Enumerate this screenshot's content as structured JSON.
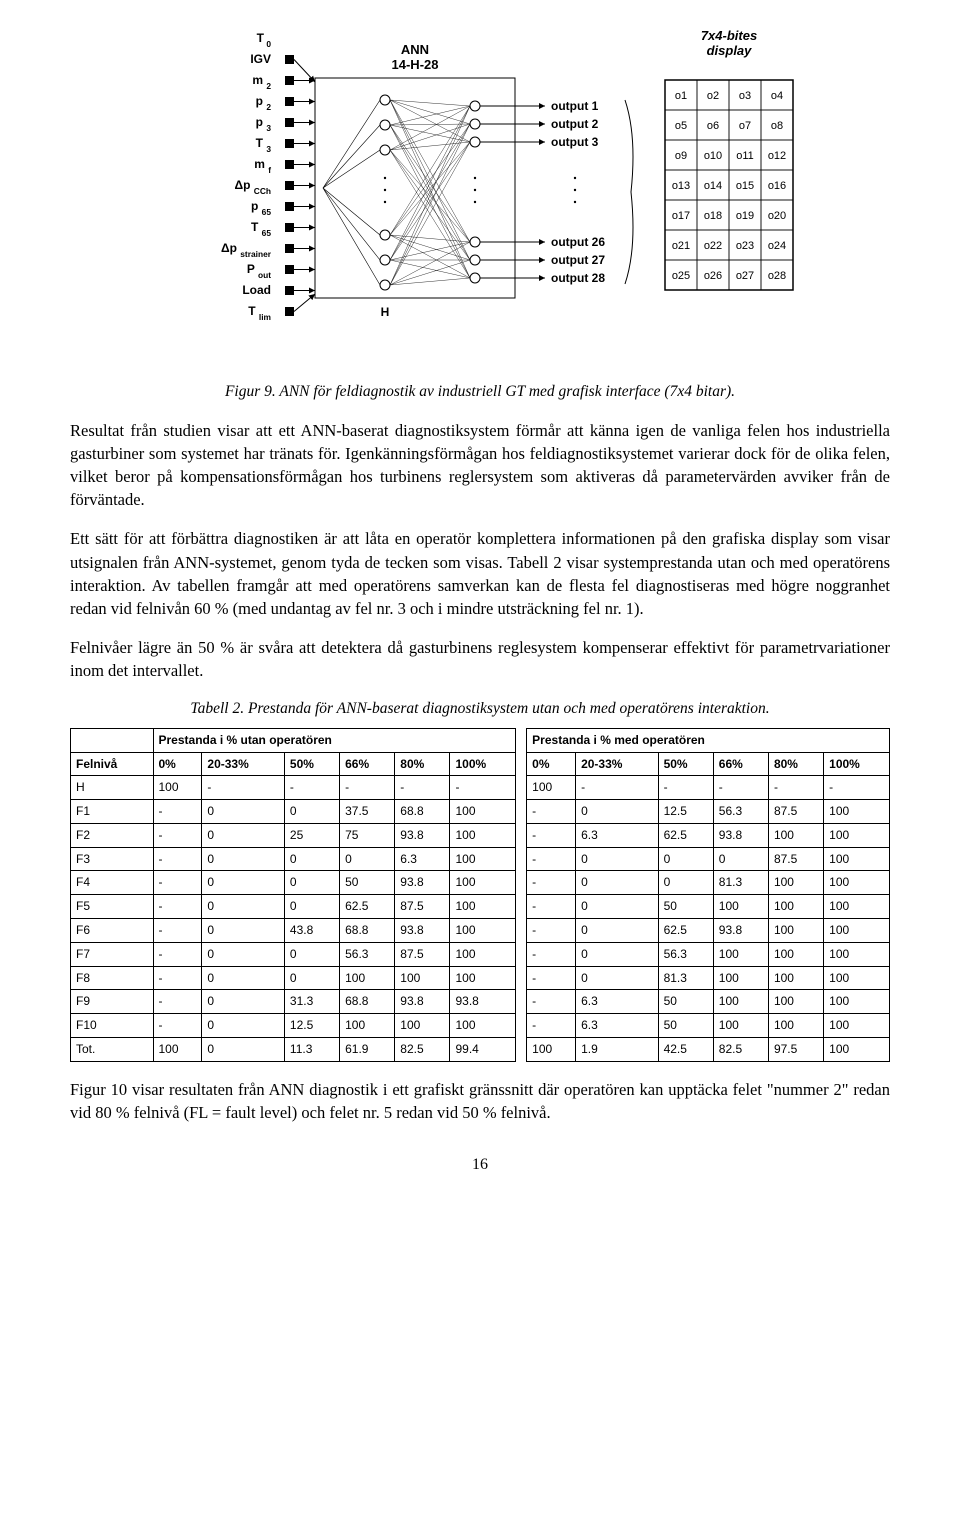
{
  "figure9": {
    "inputs": [
      "T<sub> 0</sub>",
      "IGV",
      "m <sub>2</sub>",
      "p <sub>2</sub>",
      "p <sub>3</sub>",
      "T <sub>3</sub>",
      "m <sub>f</sub>",
      "Δp <sub>CCh</sub>",
      "p <sub>65</sub>",
      "T <sub>65</sub>",
      "Δp <sub>strainer</sub>",
      "P <sub>out</sub>",
      "Load",
      "T <sub>lim</sub>"
    ],
    "ann_title": "ANN\n14-H-28",
    "hidden_label": "H",
    "outputs": [
      "output 1",
      "output 2",
      "output 3",
      "output 26",
      "output 27",
      "output 28"
    ],
    "display_title": "7x4-bites\ndisplay",
    "display_cells": [
      [
        "o1",
        "o2",
        "o3",
        "o4"
      ],
      [
        "o5",
        "o6",
        "o7",
        "o8"
      ],
      [
        "o9",
        "o10",
        "o11",
        "o12"
      ],
      [
        "o13",
        "o14",
        "o15",
        "o16"
      ],
      [
        "o17",
        "o18",
        "o19",
        "o20"
      ],
      [
        "o21",
        "o22",
        "o23",
        "o24"
      ],
      [
        "o25",
        "o26",
        "o27",
        "o28"
      ]
    ],
    "caption": "Figur 9. ANN för feldiagnostik av industriell GT med grafisk interface (7x4 bitar).",
    "style": {
      "font_family": "Tahoma, Verdana, Arial, sans-serif",
      "font_size_label": 12,
      "font_size_header": 13,
      "input_box_fill": "#000000",
      "input_box_size": 9,
      "node_radius": 5,
      "node_fill": "#ffffff",
      "node_stroke": "#000000",
      "line_color": "#000000",
      "display_border": "#000000",
      "display_cell_border": "#000000"
    }
  },
  "paragraphs": {
    "p1": "Resultat från studien visar att ett ANN-baserat diagnostiksystem förmår att känna igen de vanliga felen hos industriella gasturbiner som systemet har tränats för. Igenkänningsförmågan hos feldiagnostiksystemet varierar dock för de olika felen, vilket beror på kompensationsförmågan hos turbinens reglersystem som aktiveras då parametervärden avviker från de förväntade.",
    "p2": "Ett sätt för att förbättra diagnostiken är att låta en operatör komplettera informationen på den grafiska display som visar utsignalen från ANN-systemet, genom tyda de tecken som visas. Tabell 2 visar systemprestanda utan och med operatörens interaktion. Av tabellen framgår att med operatörens samverkan kan de flesta fel diagnostiseras med högre noggranhet redan vid felnivån 60 % (med undantag av fel nr. 3 och i mindre utsträckning fel nr. 1).",
    "p3": "Felnivåer lägre än 50 % är svåra att detektera då gasturbinens reglesystem kompenserar effektivt för parametrvariationer inom det intervallet.",
    "p4": "Figur 10 visar resultaten från ANN diagnostik i ett grafiskt gränssnitt där operatören kan upptäcka felet \"nummer 2\" redan vid 80 % felnivå (FL = fault level) och felet nr. 5 redan vid 50 % felnivå."
  },
  "table2": {
    "caption": "Tabell 2. Prestanda för ANN-baserat diagnostiksystem utan och med operatörens interaktion.",
    "group_left": "Prestanda i % utan operatören",
    "group_right": "Prestanda i % med operatören",
    "row_header": "Felnivå",
    "cols": [
      "0%",
      "20-33%",
      "50%",
      "66%",
      "80%",
      "100%"
    ],
    "rows": [
      {
        "label": "H",
        "l": [
          "100",
          "-",
          "-",
          "-",
          "-",
          "-"
        ],
        "r": [
          "100",
          "-",
          "-",
          "-",
          "-",
          "-"
        ]
      },
      {
        "label": "F1",
        "l": [
          "-",
          "0",
          "0",
          "37.5",
          "68.8",
          "100"
        ],
        "r": [
          "-",
          "0",
          "12.5",
          "56.3",
          "87.5",
          "100"
        ]
      },
      {
        "label": "F2",
        "l": [
          "-",
          "0",
          "25",
          "75",
          "93.8",
          "100"
        ],
        "r": [
          "-",
          "6.3",
          "62.5",
          "93.8",
          "100",
          "100"
        ]
      },
      {
        "label": "F3",
        "l": [
          "-",
          "0",
          "0",
          "0",
          "6.3",
          "100"
        ],
        "r": [
          "-",
          "0",
          "0",
          "0",
          "87.5",
          "100"
        ]
      },
      {
        "label": "F4",
        "l": [
          "-",
          "0",
          "0",
          "50",
          "93.8",
          "100"
        ],
        "r": [
          "-",
          "0",
          "0",
          "81.3",
          "100",
          "100"
        ]
      },
      {
        "label": "F5",
        "l": [
          "-",
          "0",
          "0",
          "62.5",
          "87.5",
          "100"
        ],
        "r": [
          "-",
          "0",
          "50",
          "100",
          "100",
          "100"
        ]
      },
      {
        "label": "F6",
        "l": [
          "-",
          "0",
          "43.8",
          "68.8",
          "93.8",
          "100"
        ],
        "r": [
          "-",
          "0",
          "62.5",
          "93.8",
          "100",
          "100"
        ]
      },
      {
        "label": "F7",
        "l": [
          "-",
          "0",
          "0",
          "56.3",
          "87.5",
          "100"
        ],
        "r": [
          "-",
          "0",
          "56.3",
          "100",
          "100",
          "100"
        ]
      },
      {
        "label": "F8",
        "l": [
          "-",
          "0",
          "0",
          "100",
          "100",
          "100"
        ],
        "r": [
          "-",
          "0",
          "81.3",
          "100",
          "100",
          "100"
        ]
      },
      {
        "label": "F9",
        "l": [
          "-",
          "0",
          "31.3",
          "68.8",
          "93.8",
          "93.8"
        ],
        "r": [
          "-",
          "6.3",
          "50",
          "100",
          "100",
          "100"
        ]
      },
      {
        "label": "F10",
        "l": [
          "-",
          "0",
          "12.5",
          "100",
          "100",
          "100"
        ],
        "r": [
          "-",
          "6.3",
          "50",
          "100",
          "100",
          "100"
        ]
      },
      {
        "label": "Tot.",
        "l": [
          "100",
          "0",
          "11.3",
          "61.9",
          "82.5",
          "99.4"
        ],
        "r": [
          "100",
          "1.9",
          "42.5",
          "82.5",
          "97.5",
          "100"
        ]
      }
    ],
    "style": {
      "border_color": "#000000",
      "font_family": "Arial, Helvetica, sans-serif",
      "font_size": 12,
      "header_weight": "bold"
    }
  },
  "page_number": "16"
}
